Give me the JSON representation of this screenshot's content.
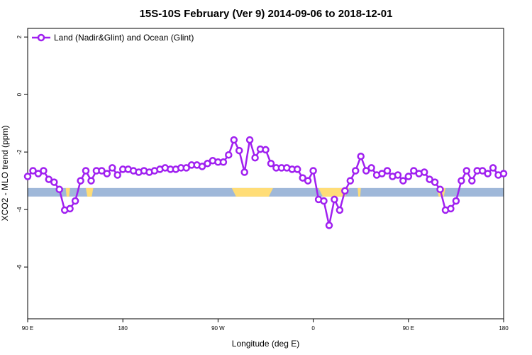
{
  "chart_data": {
    "type": "line",
    "title": "15S-10S February (Ver 9)   2014-09-06 to 2018-12-01",
    "xlabel": "Longitude (deg E)",
    "ylabel": "XCO2 - MLO trend (ppm)",
    "xlim": [
      90,
      540
    ],
    "ylim": [
      -7.8,
      2.3
    ],
    "x_ticks": [
      {
        "value": 90,
        "label": "90 E"
      },
      {
        "value": 180,
        "label": "180"
      },
      {
        "value": 270,
        "label": "90 W"
      },
      {
        "value": 360,
        "label": "0"
      },
      {
        "value": 450,
        "label": "90 E"
      },
      {
        "value": 540,
        "label": "180"
      }
    ],
    "y_ticks": [
      {
        "value": 2,
        "label": "2"
      },
      {
        "value": 0,
        "label": "0"
      },
      {
        "value": -2,
        "label": "-2"
      },
      {
        "value": -4,
        "label": "-4"
      },
      {
        "value": -6,
        "label": "-6"
      }
    ],
    "grid": false,
    "legend_position": "top-left",
    "series": [
      {
        "name": "Land (Nadir&Glint) and Ocean (Glint)",
        "color": "#a020f0",
        "marker": "open-circle",
        "x": [
          90,
          95,
          100,
          105,
          110,
          115,
          120,
          125,
          130,
          135,
          140,
          145,
          150,
          155,
          160,
          165,
          170,
          175,
          180,
          185,
          190,
          195,
          200,
          205,
          210,
          215,
          220,
          225,
          230,
          235,
          240,
          245,
          250,
          255,
          260,
          265,
          270,
          275,
          280,
          285,
          290,
          295,
          300,
          305,
          310,
          315,
          320,
          325,
          330,
          335,
          340,
          345,
          350,
          355,
          360,
          365,
          370,
          375,
          380,
          385,
          390,
          395,
          400,
          405,
          410,
          415,
          420,
          425,
          430,
          435,
          440,
          445,
          450,
          455,
          460,
          465,
          470,
          475,
          480,
          485,
          490,
          495,
          500,
          505,
          510,
          515,
          520,
          525,
          530,
          535,
          540
        ],
        "y": [
          -2.85,
          -2.65,
          -2.75,
          -2.65,
          -2.95,
          -3.05,
          -3.3,
          -4.02,
          -3.97,
          -3.7,
          -3.0,
          -2.65,
          -3.0,
          -2.65,
          -2.65,
          -2.75,
          -2.55,
          -2.8,
          -2.6,
          -2.6,
          -2.65,
          -2.7,
          -2.65,
          -2.7,
          -2.65,
          -2.6,
          -2.55,
          -2.6,
          -2.6,
          -2.55,
          -2.55,
          -2.45,
          -2.45,
          -2.5,
          -2.4,
          -2.3,
          -2.35,
          -2.35,
          -2.1,
          -1.58,
          -1.95,
          -2.7,
          -1.58,
          -2.2,
          -1.9,
          -1.92,
          -2.4,
          -2.55,
          -2.55,
          -2.55,
          -2.6,
          -2.6,
          -2.9,
          -3.0,
          -2.65,
          -3.65,
          -3.7,
          -4.55,
          -3.65,
          -4.02,
          -3.35,
          -3.0,
          -2.65,
          -2.15,
          -2.65,
          -2.55,
          -2.8,
          -2.75,
          -2.65,
          -2.85,
          -2.8,
          -3.0,
          -2.85,
          -2.65,
          -2.75,
          -2.7,
          -2.95,
          -3.05,
          -3.3,
          -4.02,
          -3.97,
          -3.7,
          -3.0,
          -2.65,
          -3.0,
          -2.65,
          -2.65,
          -2.75,
          -2.55,
          -2.8,
          -2.75
        ]
      }
    ],
    "surface_bar": {
      "y": -3.4,
      "ocean_color": "#9fb8d9",
      "land_color": "#ffdd77",
      "land_spans": [
        [
          126,
          130
        ],
        [
          145,
          152
        ],
        [
          283,
          322
        ],
        [
          365,
          394
        ],
        [
          402,
          405
        ],
        [
          477,
          485
        ]
      ]
    }
  }
}
